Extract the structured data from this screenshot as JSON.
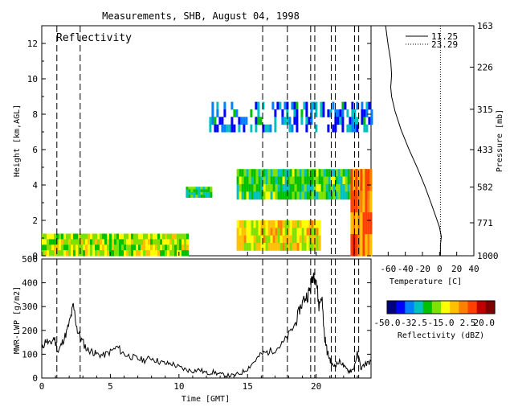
{
  "title": "Measurements, SHB, August 04, 1998",
  "chart_data": [
    {
      "type": "heatmap",
      "panel": "reflectivity",
      "label": "Reflectivity",
      "xlabel": "",
      "ylabel": "Height [km,AGL]",
      "xlim": [
        0,
        24
      ],
      "ylim": [
        0,
        13
      ],
      "yticks": [
        "0",
        "2",
        "4",
        "6",
        "8",
        "10",
        "12"
      ],
      "colorbar": {
        "label": "Reflectivity (dBZ)",
        "ticks": [
          "-50.0",
          "-32.5",
          "-15.0",
          "2.5",
          "20.0"
        ],
        "range": [
          -50,
          20
        ],
        "colors": [
          "#000080",
          "#0000ff",
          "#0080ff",
          "#00c0c0",
          "#00c000",
          "#80e000",
          "#ffff00",
          "#ffc000",
          "#ff8000",
          "#ff4000",
          "#c00000",
          "#800000"
        ]
      },
      "echo_regions": [
        {
          "t0": 0.0,
          "t1": 10.7,
          "h0": 0.0,
          "h1": 1.25,
          "dbz": -15
        },
        {
          "t0": 10.5,
          "t1": 12.4,
          "h0": 3.3,
          "h1": 3.9,
          "dbz": -25
        },
        {
          "t0": 14.2,
          "t1": 24.0,
          "h0": 3.2,
          "h1": 4.9,
          "dbz": -22
        },
        {
          "t0": 14.2,
          "t1": 20.3,
          "h0": 0.3,
          "h1": 2.0,
          "dbz": -10
        },
        {
          "t0": 22.5,
          "t1": 24.0,
          "h0": 0.0,
          "h1": 4.9,
          "dbz": 0
        },
        {
          "t0": 12.2,
          "t1": 24.0,
          "h0": 7.0,
          "h1": 8.7,
          "dbz": -35
        }
      ],
      "event_lines": [
        1.1,
        2.8,
        16.1,
        17.9,
        19.6,
        19.9,
        21.1,
        21.4,
        22.8,
        23.1
      ]
    },
    {
      "type": "line",
      "panel": "sounding",
      "xlabel": "Temperature [C]",
      "ylabel": "Pressure [mb]",
      "xticks": [
        "-60",
        "-40",
        "-20",
        "0",
        "20",
        "40"
      ],
      "xlim": [
        -80,
        40
      ],
      "yticks": [
        "163",
        "226",
        "315",
        "433",
        "582",
        "771",
        "1000"
      ],
      "series": [
        {
          "name": "11.25",
          "style": "solid",
          "points": [
            [
              -63,
              163
            ],
            [
              -60,
              190
            ],
            [
              -57,
              215
            ],
            [
              -56,
              240
            ],
            [
              -57,
              265
            ],
            [
              -56,
              285
            ],
            [
              -52,
              320
            ],
            [
              -45,
              370
            ],
            [
              -36,
              430
            ],
            [
              -26,
              500
            ],
            [
              -17,
              580
            ],
            [
              -10,
              660
            ],
            [
              -4,
              740
            ],
            [
              0,
              800
            ],
            [
              2,
              860
            ],
            [
              1,
              920
            ],
            [
              1,
              1000
            ]
          ]
        },
        {
          "name": "23.29",
          "style": "dotted",
          "points": [
            [
              1,
              163
            ],
            [
              1,
              1000
            ]
          ]
        }
      ]
    },
    {
      "type": "line",
      "panel": "lwp",
      "xlabel": "Time [GMT]",
      "ylabel": "MWR-LWP [g/m2]",
      "xticks": [
        "0",
        "5",
        "10",
        "15",
        "20"
      ],
      "xlim": [
        0,
        24
      ],
      "yticks": [
        "0",
        "100",
        "200",
        "300",
        "400",
        "500"
      ],
      "ylim": [
        0,
        500
      ],
      "series": [
        {
          "name": "MWR-LWP",
          "x": [
            0,
            0.3,
            0.6,
            0.9,
            1.2,
            1.5,
            1.8,
            2.1,
            2.3,
            2.6,
            2.9,
            3.3,
            3.7,
            4.0,
            4.5,
            5.0,
            5.5,
            6.0,
            6.5,
            7.0,
            7.5,
            8.0,
            8.5,
            9.0,
            9.5,
            10.0,
            10.5,
            11.0,
            11.5,
            12.0,
            12.5,
            13.0,
            13.5,
            14.0,
            14.5,
            15.0,
            15.5,
            16.0,
            16.5,
            17.0,
            17.5,
            18.0,
            18.5,
            18.8,
            19.1,
            19.4,
            19.6,
            19.8,
            20.0,
            20.2,
            20.4,
            20.6,
            20.8,
            21.0,
            21.2,
            21.5,
            21.8,
            22.1,
            22.4,
            22.7,
            23.0,
            23.3,
            23.6,
            24.0
          ],
          "y": [
            120,
            160,
            140,
            170,
            110,
            150,
            190,
            250,
            305,
            200,
            160,
            120,
            110,
            100,
            95,
            110,
            130,
            100,
            90,
            80,
            75,
            85,
            70,
            60,
            60,
            45,
            35,
            30,
            35,
            20,
            25,
            15,
            10,
            10,
            20,
            40,
            70,
            100,
            110,
            120,
            140,
            180,
            230,
            290,
            330,
            350,
            380,
            440,
            420,
            300,
            350,
            180,
            110,
            80,
            50,
            60,
            70,
            40,
            30,
            35,
            100,
            40,
            60,
            70
          ]
        }
      ]
    }
  ],
  "labels": {
    "reflectivity": "Reflectivity",
    "height_axis": "Height [km,AGL]",
    "pressure_axis": "Pressure [mb]",
    "temperature_axis": "Temperature [C]",
    "lwp_axis": "MWR-LWP [g/m2]",
    "time_axis": "Time [GMT]",
    "legend_solid": "11.25",
    "legend_dotted": "23.29",
    "colorbar_label": "Reflectivity (dBZ)"
  }
}
